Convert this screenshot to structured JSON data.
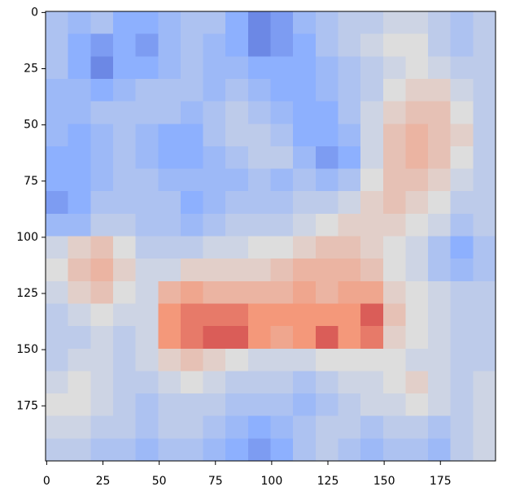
{
  "chart_data": {
    "type": "heatmap",
    "xbins": [
      -0.5,
      9.5,
      19.5,
      29.5,
      39.5,
      49.5,
      59.5,
      69.5,
      79.5,
      89.5,
      99.5,
      109.5,
      119.5,
      129.5,
      139.5,
      149.5,
      159.5,
      169.5,
      179.5,
      189.5,
      199.5
    ],
    "ybins": [
      -0.5,
      9.5,
      19.5,
      29.5,
      39.5,
      49.5,
      59.5,
      69.5,
      79.5,
      89.5,
      99.5,
      109.5,
      119.5,
      129.5,
      139.5,
      149.5,
      159.5,
      169.5,
      179.5,
      189.5,
      199.5
    ],
    "values": [
      [
        -0.3,
        -0.4,
        -0.3,
        -0.5,
        -0.5,
        -0.4,
        -0.3,
        -0.3,
        -0.5,
        -0.7,
        -0.6,
        -0.4,
        -0.3,
        -0.2,
        -0.2,
        -0.1,
        -0.1,
        -0.2,
        -0.3,
        -0.2
      ],
      [
        -0.3,
        -0.5,
        -0.6,
        -0.5,
        -0.6,
        -0.4,
        -0.3,
        -0.4,
        -0.5,
        -0.7,
        -0.6,
        -0.5,
        -0.3,
        -0.2,
        -0.1,
        0,
        0,
        -0.2,
        -0.3,
        -0.2
      ],
      [
        -0.3,
        -0.5,
        -0.7,
        -0.5,
        -0.5,
        -0.4,
        -0.3,
        -0.4,
        -0.4,
        -0.5,
        -0.5,
        -0.5,
        -0.4,
        -0.3,
        -0.2,
        -0.1,
        0,
        -0.1,
        -0.2,
        -0.2
      ],
      [
        -0.4,
        -0.4,
        -0.5,
        -0.4,
        -0.3,
        -0.3,
        -0.3,
        -0.4,
        -0.3,
        -0.4,
        -0.5,
        -0.5,
        -0.4,
        -0.3,
        -0.2,
        0,
        0.1,
        0.1,
        -0.1,
        -0.2
      ],
      [
        -0.4,
        -0.4,
        -0.3,
        -0.3,
        -0.3,
        -0.3,
        -0.4,
        -0.3,
        -0.2,
        -0.3,
        -0.4,
        -0.5,
        -0.5,
        -0.3,
        -0.1,
        0.1,
        0.2,
        0.2,
        0,
        -0.2
      ],
      [
        -0.4,
        -0.5,
        -0.4,
        -0.3,
        -0.4,
        -0.5,
        -0.5,
        -0.3,
        -0.2,
        -0.2,
        -0.3,
        -0.5,
        -0.5,
        -0.4,
        -0.1,
        0.2,
        0.3,
        0.2,
        0.1,
        -0.2
      ],
      [
        -0.5,
        -0.5,
        -0.4,
        -0.3,
        -0.4,
        -0.5,
        -0.5,
        -0.4,
        -0.3,
        -0.2,
        -0.2,
        -0.4,
        -0.6,
        -0.5,
        -0.1,
        0.2,
        0.3,
        0.2,
        0,
        -0.2
      ],
      [
        -0.5,
        -0.5,
        -0.4,
        -0.3,
        -0.3,
        -0.4,
        -0.4,
        -0.4,
        -0.4,
        -0.3,
        -0.4,
        -0.3,
        -0.4,
        -0.3,
        0,
        0.2,
        0.2,
        0.1,
        -0.1,
        -0.2
      ],
      [
        -0.6,
        -0.5,
        -0.3,
        -0.3,
        -0.3,
        -0.3,
        -0.5,
        -0.4,
        -0.3,
        -0.3,
        -0.3,
        -0.2,
        -0.2,
        -0.1,
        0.1,
        0.2,
        0.1,
        0,
        -0.2,
        -0.2
      ],
      [
        -0.4,
        -0.4,
        -0.2,
        -0.2,
        -0.3,
        -0.3,
        -0.4,
        -0.3,
        -0.2,
        -0.2,
        -0.2,
        -0.1,
        0,
        0.1,
        0.1,
        0.1,
        0,
        -0.1,
        -0.3,
        -0.2
      ],
      [
        -0.1,
        0.1,
        0.2,
        0,
        -0.2,
        -0.2,
        -0.2,
        -0.1,
        -0.1,
        0,
        0,
        0.1,
        0.2,
        0.2,
        0.1,
        0,
        -0.1,
        -0.3,
        -0.5,
        -0.3
      ],
      [
        0,
        0.2,
        0.3,
        0.1,
        -0.1,
        -0.1,
        0.1,
        0.1,
        0.1,
        0.1,
        0.2,
        0.3,
        0.3,
        0.3,
        0.2,
        0,
        -0.1,
        -0.3,
        -0.4,
        -0.3
      ],
      [
        -0.1,
        0.1,
        0.2,
        0,
        -0.1,
        0.3,
        0.4,
        0.3,
        0.3,
        0.3,
        0.3,
        0.4,
        0.3,
        0.4,
        0.4,
        0.1,
        0,
        -0.1,
        -0.2,
        -0.2
      ],
      [
        -0.2,
        -0.1,
        0,
        -0.1,
        -0.1,
        0.5,
        0.6,
        0.6,
        0.6,
        0.5,
        0.5,
        0.5,
        0.5,
        0.5,
        0.7,
        0.2,
        0,
        -0.1,
        -0.2,
        -0.2
      ],
      [
        -0.2,
        -0.2,
        -0.1,
        -0.2,
        -0.1,
        0.5,
        0.6,
        0.7,
        0.7,
        0.5,
        0.4,
        0.5,
        0.7,
        0.5,
        0.6,
        0.1,
        0,
        -0.1,
        -0.2,
        -0.2
      ],
      [
        -0.2,
        -0.1,
        -0.1,
        -0.2,
        -0.1,
        0.1,
        0.2,
        0.1,
        0,
        -0.1,
        -0.1,
        -0.1,
        0,
        0,
        0,
        0,
        -0.1,
        -0.1,
        -0.2,
        -0.2
      ],
      [
        -0.1,
        0,
        -0.1,
        -0.2,
        -0.2,
        -0.1,
        0,
        -0.1,
        -0.2,
        -0.2,
        -0.2,
        -0.3,
        -0.2,
        -0.1,
        -0.1,
        0,
        0.1,
        -0.1,
        -0.2,
        -0.1
      ],
      [
        0,
        0,
        -0.1,
        -0.2,
        -0.3,
        -0.2,
        -0.2,
        -0.2,
        -0.3,
        -0.3,
        -0.3,
        -0.4,
        -0.3,
        -0.2,
        -0.1,
        -0.1,
        0,
        -0.1,
        -0.2,
        -0.1
      ],
      [
        -0.1,
        -0.1,
        -0.2,
        -0.2,
        -0.3,
        -0.2,
        -0.2,
        -0.3,
        -0.4,
        -0.5,
        -0.4,
        -0.3,
        -0.2,
        -0.2,
        -0.3,
        -0.2,
        -0.2,
        -0.3,
        -0.2,
        -0.1
      ],
      [
        -0.2,
        -0.2,
        -0.3,
        -0.3,
        -0.4,
        -0.3,
        -0.3,
        -0.4,
        -0.5,
        -0.6,
        -0.5,
        -0.3,
        -0.2,
        -0.3,
        -0.4,
        -0.3,
        -0.3,
        -0.4,
        -0.2,
        -0.1
      ]
    ],
    "vlim": [
      -1,
      1
    ],
    "colormap": [
      "#3b4cc0",
      "#8db0fe",
      "#dddddd",
      "#f4987a",
      "#b40426"
    ],
    "xlim": [
      -0.5,
      199.5
    ],
    "ylim": [
      199.5,
      -0.5
    ],
    "xticks": [
      0,
      25,
      50,
      75,
      100,
      125,
      150,
      175
    ],
    "yticks": [
      0,
      25,
      50,
      75,
      100,
      125,
      150,
      175
    ]
  }
}
